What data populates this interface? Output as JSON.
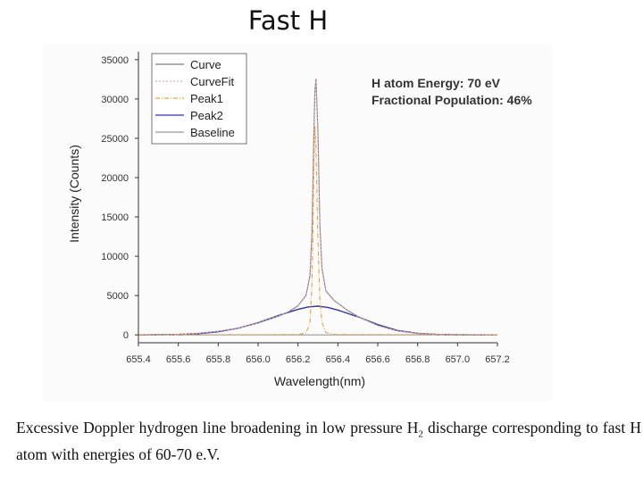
{
  "slide": {
    "title": "Fast H",
    "caption": {
      "part1": "Excessive Doppler hydrogen line broadening in low pressure H",
      "sub": "2",
      "part2": " discharge corresponding to fast H atom with energies of 60-70 e.V."
    }
  },
  "chart_data": {
    "type": "line",
    "title": "",
    "xlabel": "Wavelength(nm)",
    "ylabel": "Intensity (Counts)",
    "xlim": [
      655.4,
      657.2
    ],
    "ylim": [
      -1000,
      36000
    ],
    "xticks": [
      "655.4",
      "655.6",
      "655.8",
      "656.0",
      "656.2",
      "656.4",
      "656.6",
      "656.8",
      "657.0",
      "657.2"
    ],
    "yticks": [
      "0",
      "5000",
      "10000",
      "15000",
      "20000",
      "25000",
      "30000",
      "35000"
    ],
    "grid": false,
    "legend_position": "top-left",
    "annotations": [
      "H atom Energy: 70 eV",
      "Fractional Population: 46%"
    ],
    "series": [
      {
        "name": "Curve",
        "color": "#7a7a7a",
        "dash": "solid",
        "x": [
          655.4,
          655.6,
          655.7,
          655.8,
          655.9,
          656.0,
          656.1,
          656.15,
          656.2,
          656.24,
          656.26,
          656.27,
          656.28,
          656.285,
          656.29,
          656.3,
          656.31,
          656.32,
          656.34,
          656.38,
          656.45,
          656.5,
          656.6,
          656.7,
          656.8,
          656.9,
          657.0,
          657.2
        ],
        "y": [
          0,
          80,
          200,
          450,
          850,
          1500,
          2350,
          2900,
          3700,
          5000,
          7500,
          13000,
          26000,
          31000,
          32500,
          26000,
          14000,
          8500,
          5600,
          4400,
          3100,
          2350,
          1200,
          500,
          200,
          80,
          30,
          0
        ]
      },
      {
        "name": "CurveFit",
        "color": "#d9a6c7",
        "dash": "2,2",
        "x": [
          655.4,
          655.6,
          655.7,
          655.8,
          655.9,
          656.0,
          656.1,
          656.15,
          656.2,
          656.24,
          656.26,
          656.27,
          656.28,
          656.285,
          656.29,
          656.3,
          656.31,
          656.32,
          656.34,
          656.38,
          656.45,
          656.5,
          656.6,
          656.7,
          656.8,
          656.9,
          657.0,
          657.2
        ],
        "y": [
          0,
          80,
          210,
          460,
          870,
          1520,
          2400,
          2950,
          3750,
          5100,
          7700,
          13500,
          26500,
          31200,
          32300,
          25500,
          13600,
          8300,
          5500,
          4350,
          3050,
          2300,
          1180,
          490,
          190,
          75,
          25,
          0
        ]
      },
      {
        "name": "Peak1",
        "color": "#e8a23c",
        "dash": "5,2,1,2",
        "x": [
          655.4,
          656.2,
          656.24,
          656.26,
          656.27,
          656.275,
          656.28,
          656.285,
          656.29,
          656.3,
          656.31,
          656.32,
          656.34,
          656.38,
          657.2
        ],
        "y": [
          0,
          40,
          250,
          1500,
          6500,
          13000,
          22000,
          26500,
          24000,
          12000,
          4500,
          1600,
          300,
          50,
          0
        ]
      },
      {
        "name": "Peak2",
        "color": "#3434a0",
        "dash": "solid",
        "x": [
          655.4,
          655.6,
          655.7,
          655.8,
          655.9,
          656.0,
          656.1,
          656.2,
          656.25,
          656.3,
          656.35,
          656.4,
          656.5,
          656.6,
          656.7,
          656.8,
          656.9,
          657.0,
          657.2
        ],
        "y": [
          0,
          50,
          160,
          400,
          850,
          1550,
          2450,
          3250,
          3550,
          3650,
          3500,
          3150,
          2300,
          1300,
          560,
          200,
          60,
          15,
          0
        ]
      },
      {
        "name": "Baseline",
        "color": "#999999",
        "dash": "solid",
        "x": [
          655.4,
          657.2
        ],
        "y": [
          0,
          0
        ]
      }
    ]
  }
}
